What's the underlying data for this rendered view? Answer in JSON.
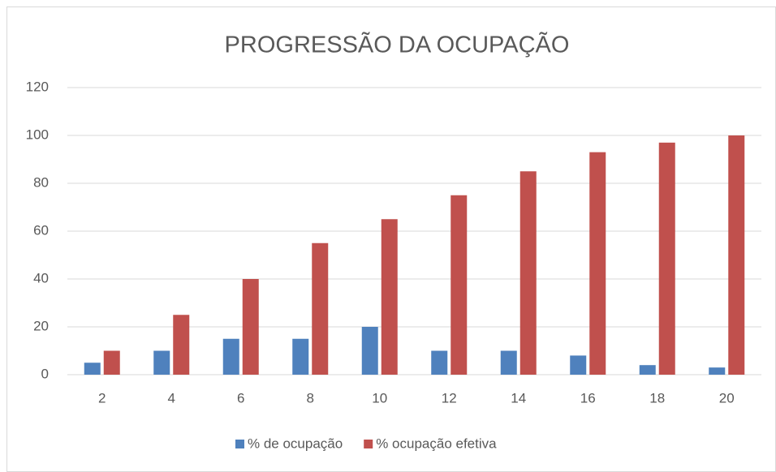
{
  "chart_data": {
    "type": "bar",
    "title": "PROGRESSÃO DA OCUPAÇÃO",
    "categories": [
      "2",
      "4",
      "6",
      "8",
      "10",
      "12",
      "14",
      "16",
      "18",
      "20"
    ],
    "series": [
      {
        "name": "% de ocupação",
        "color": "#4f81bd",
        "values": [
          5,
          10,
          15,
          15,
          20,
          10,
          10,
          8,
          4,
          3
        ]
      },
      {
        "name": "% ocupação efetiva",
        "color": "#c0504d",
        "values": [
          10,
          25,
          40,
          55,
          65,
          75,
          85,
          93,
          97,
          100
        ]
      }
    ],
    "ylim": [
      0,
      120
    ],
    "yticks": [
      0,
      20,
      40,
      60,
      80,
      100,
      120
    ],
    "grid": true,
    "legend": "bottom"
  }
}
